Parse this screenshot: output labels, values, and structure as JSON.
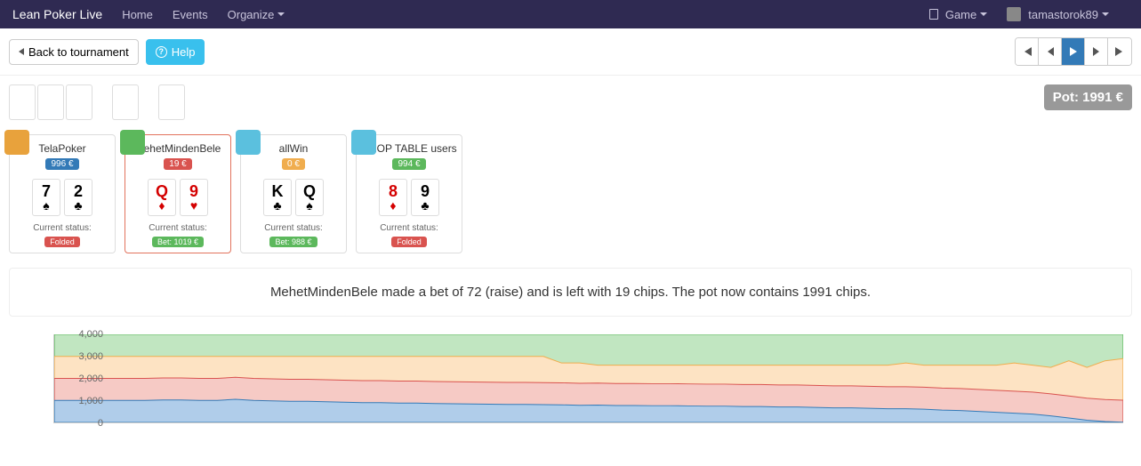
{
  "nav": {
    "brand": "Lean Poker Live",
    "items": [
      "Home",
      "Events",
      "Organize"
    ],
    "game_label": "Game",
    "username": "tamastorok89"
  },
  "topbar": {
    "back_label": "Back to tournament",
    "help_label": "Help"
  },
  "pot": {
    "label": "Pot: 1991 €"
  },
  "players": [
    {
      "name": "TelaPoker",
      "chips_label": "996 €",
      "chips_color": "#337ab7",
      "avatar_color": "#e8a23c",
      "active": false,
      "cards": [
        {
          "rank": "7",
          "suit": "♠",
          "color": "black"
        },
        {
          "rank": "2",
          "suit": "♣",
          "color": "black"
        }
      ],
      "status_label": "Current status:",
      "status_badge": "Folded",
      "status_badge_color": "#d9534f"
    },
    {
      "name": "MehetMindenBele",
      "chips_label": "19 €",
      "chips_color": "#d9534f",
      "avatar_color": "#5cb85c",
      "active": true,
      "cards": [
        {
          "rank": "Q",
          "suit": "♦",
          "color": "red"
        },
        {
          "rank": "9",
          "suit": "♥",
          "color": "red"
        }
      ],
      "status_label": "Current status:",
      "status_badge": "Bet: 1019 €",
      "status_badge_color": "#5cb85c"
    },
    {
      "name": "allWin",
      "chips_label": "0 €",
      "chips_color": "#f0ad4e",
      "avatar_color": "#5bc0de",
      "active": false,
      "cards": [
        {
          "rank": "K",
          "suit": "♣",
          "color": "black"
        },
        {
          "rank": "Q",
          "suit": "♠",
          "color": "black"
        }
      ],
      "status_label": "Current status:",
      "status_badge": "Bet: 988 €",
      "status_badge_color": "#5cb85c"
    },
    {
      "name": "DROP TABLE users",
      "chips_label": "994 €",
      "chips_color": "#5cb85c",
      "avatar_color": "#5bc0de",
      "active": false,
      "cards": [
        {
          "rank": "8",
          "suit": "♦",
          "color": "red"
        },
        {
          "rank": "9",
          "suit": "♣",
          "color": "black"
        }
      ],
      "status_label": "Current status:",
      "status_badge": "Folded",
      "status_badge_color": "#d9534f"
    }
  ],
  "message": "MehetMindenBele made a bet of 72 (raise) and is left with 19 chips. The pot now contains 1991 chips.",
  "chart": {
    "type": "stacked-area",
    "ymax": 4000,
    "yticks": [
      0,
      1000,
      2000,
      3000,
      4000
    ],
    "ytick_labels": [
      "0",
      "1,000",
      "2,000",
      "3,000",
      "4,000"
    ],
    "x_count": 60,
    "background_color": "#ffffff",
    "grid_color": "#cccccc",
    "label_fontsize": 11,
    "series": [
      {
        "name": "TelaPoker",
        "color": "#b0cdea",
        "stroke": "#337ab7",
        "values": [
          1000,
          1000,
          1000,
          1000,
          1000,
          1000,
          1020,
          1020,
          1000,
          1000,
          1050,
          1000,
          980,
          960,
          960,
          940,
          920,
          900,
          900,
          880,
          880,
          860,
          850,
          840,
          830,
          820,
          820,
          810,
          800,
          780,
          790,
          770,
          770,
          760,
          760,
          750,
          740,
          740,
          720,
          720,
          700,
          700,
          680,
          660,
          660,
          640,
          620,
          620,
          600,
          560,
          540,
          500,
          460,
          420,
          380,
          300,
          200,
          100,
          40,
          10
        ]
      },
      {
        "name": "MehetMindenBele",
        "color": "#f6cac5",
        "stroke": "#d9534f",
        "values": [
          1000,
          1000,
          1000,
          1000,
          1000,
          1000,
          1000,
          1000,
          1000,
          1000,
          1000,
          1000,
          1000,
          1000,
          1000,
          1000,
          1000,
          1000,
          1000,
          1000,
          1000,
          1000,
          1000,
          1000,
          1000,
          1000,
          1000,
          1000,
          1000,
          1000,
          1000,
          1000,
          1000,
          1000,
          1000,
          1000,
          1000,
          1000,
          1000,
          1000,
          1000,
          1000,
          1000,
          1000,
          1000,
          1000,
          1000,
          1000,
          1000,
          1000,
          1000,
          1000,
          1000,
          1000,
          1000,
          1000,
          1000,
          1000,
          1000,
          1000
        ]
      },
      {
        "name": "allWin",
        "color": "#fde3c3",
        "stroke": "#f0ad4e",
        "values": [
          1000,
          1000,
          1000,
          1000,
          1000,
          1000,
          980,
          980,
          1000,
          1000,
          950,
          1000,
          1020,
          1040,
          1040,
          1060,
          1080,
          1100,
          1100,
          1120,
          1120,
          1140,
          1150,
          1160,
          1170,
          1180,
          1180,
          1190,
          900,
          920,
          810,
          830,
          830,
          840,
          840,
          850,
          860,
          860,
          880,
          880,
          900,
          900,
          920,
          940,
          940,
          960,
          980,
          1080,
          1000,
          1040,
          1060,
          1100,
          1140,
          1280,
          1220,
          1200,
          1600,
          1400,
          1760,
          1890
        ]
      },
      {
        "name": "DROP TABLE users",
        "color": "#c1e6c1",
        "stroke": "#5cb85c",
        "values": [
          1000,
          1000,
          1000,
          1000,
          1000,
          1000,
          1000,
          1000,
          1000,
          1000,
          1000,
          1000,
          1000,
          1000,
          1000,
          1000,
          1000,
          1000,
          1000,
          1000,
          1000,
          1000,
          1000,
          1000,
          1000,
          1000,
          1000,
          1000,
          1300,
          1300,
          1400,
          1400,
          1400,
          1400,
          1400,
          1400,
          1400,
          1400,
          1400,
          1400,
          1400,
          1400,
          1400,
          1400,
          1400,
          1400,
          1400,
          1300,
          1400,
          1400,
          1400,
          1400,
          1400,
          1300,
          1400,
          1500,
          1200,
          1500,
          1200,
          1100
        ]
      }
    ]
  }
}
